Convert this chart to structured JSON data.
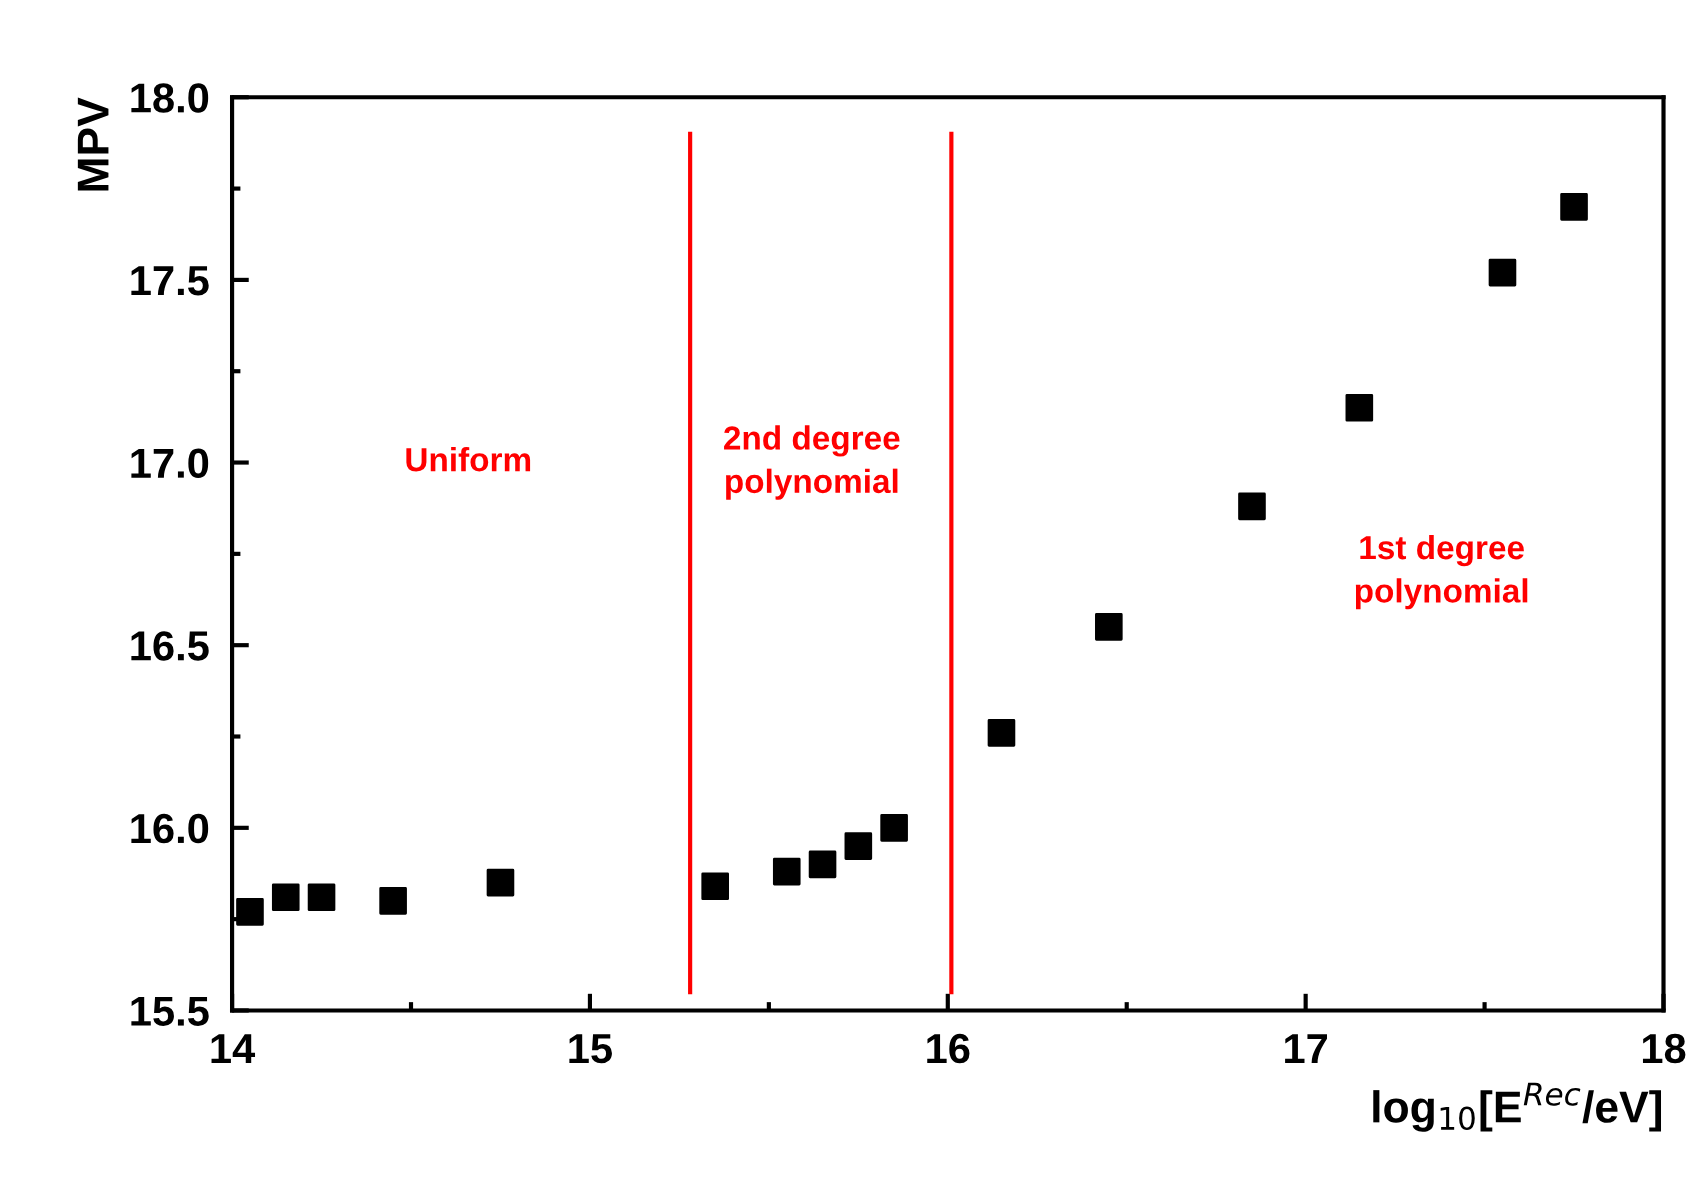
{
  "chart_data": {
    "type": "scatter",
    "xlabel": "log$_{10}$[E$^{Rec}$/eV]",
    "ylabel": "MPV",
    "x": [
      14.05,
      14.15,
      14.25,
      14.45,
      14.75,
      15.35,
      15.55,
      15.65,
      15.75,
      15.85,
      16.15,
      16.45,
      16.85,
      17.15,
      17.55,
      17.75
    ],
    "series": [
      {
        "color": "#000000",
        "values": [
          15.77,
          15.81,
          15.81,
          15.8,
          15.85,
          15.84,
          15.88,
          15.9,
          15.95,
          16.0,
          16.26,
          16.55,
          16.88,
          17.15,
          17.52,
          17.7
        ]
      }
    ],
    "marker": "square",
    "xlim": [
      14,
      18
    ],
    "xticks": [
      14,
      15,
      16,
      17,
      18
    ],
    "ylim": [
      15.5,
      18.0
    ],
    "yticks": [
      {
        "value": 15.5,
        "label": "15.5"
      },
      {
        "value": 16.0,
        "label": "16.0"
      },
      {
        "value": 16.5,
        "label": "16.5"
      },
      {
        "value": 17.0,
        "label": "17.0"
      },
      {
        "value": 17.5,
        "label": "17.5"
      },
      {
        "value": 18.0,
        "label": "18.0"
      }
    ],
    "ref_lines": [
      {
        "axis": "x",
        "value": 15.28,
        "color": "#ff0000"
      },
      {
        "axis": "x",
        "value": 16.01,
        "color": "#ff0000"
      }
    ],
    "annotations": [
      "Uniform",
      "2nd degree\npolynomial",
      "1st degree\npolynomial"
    ],
    "grid": false,
    "legend": false
  }
}
